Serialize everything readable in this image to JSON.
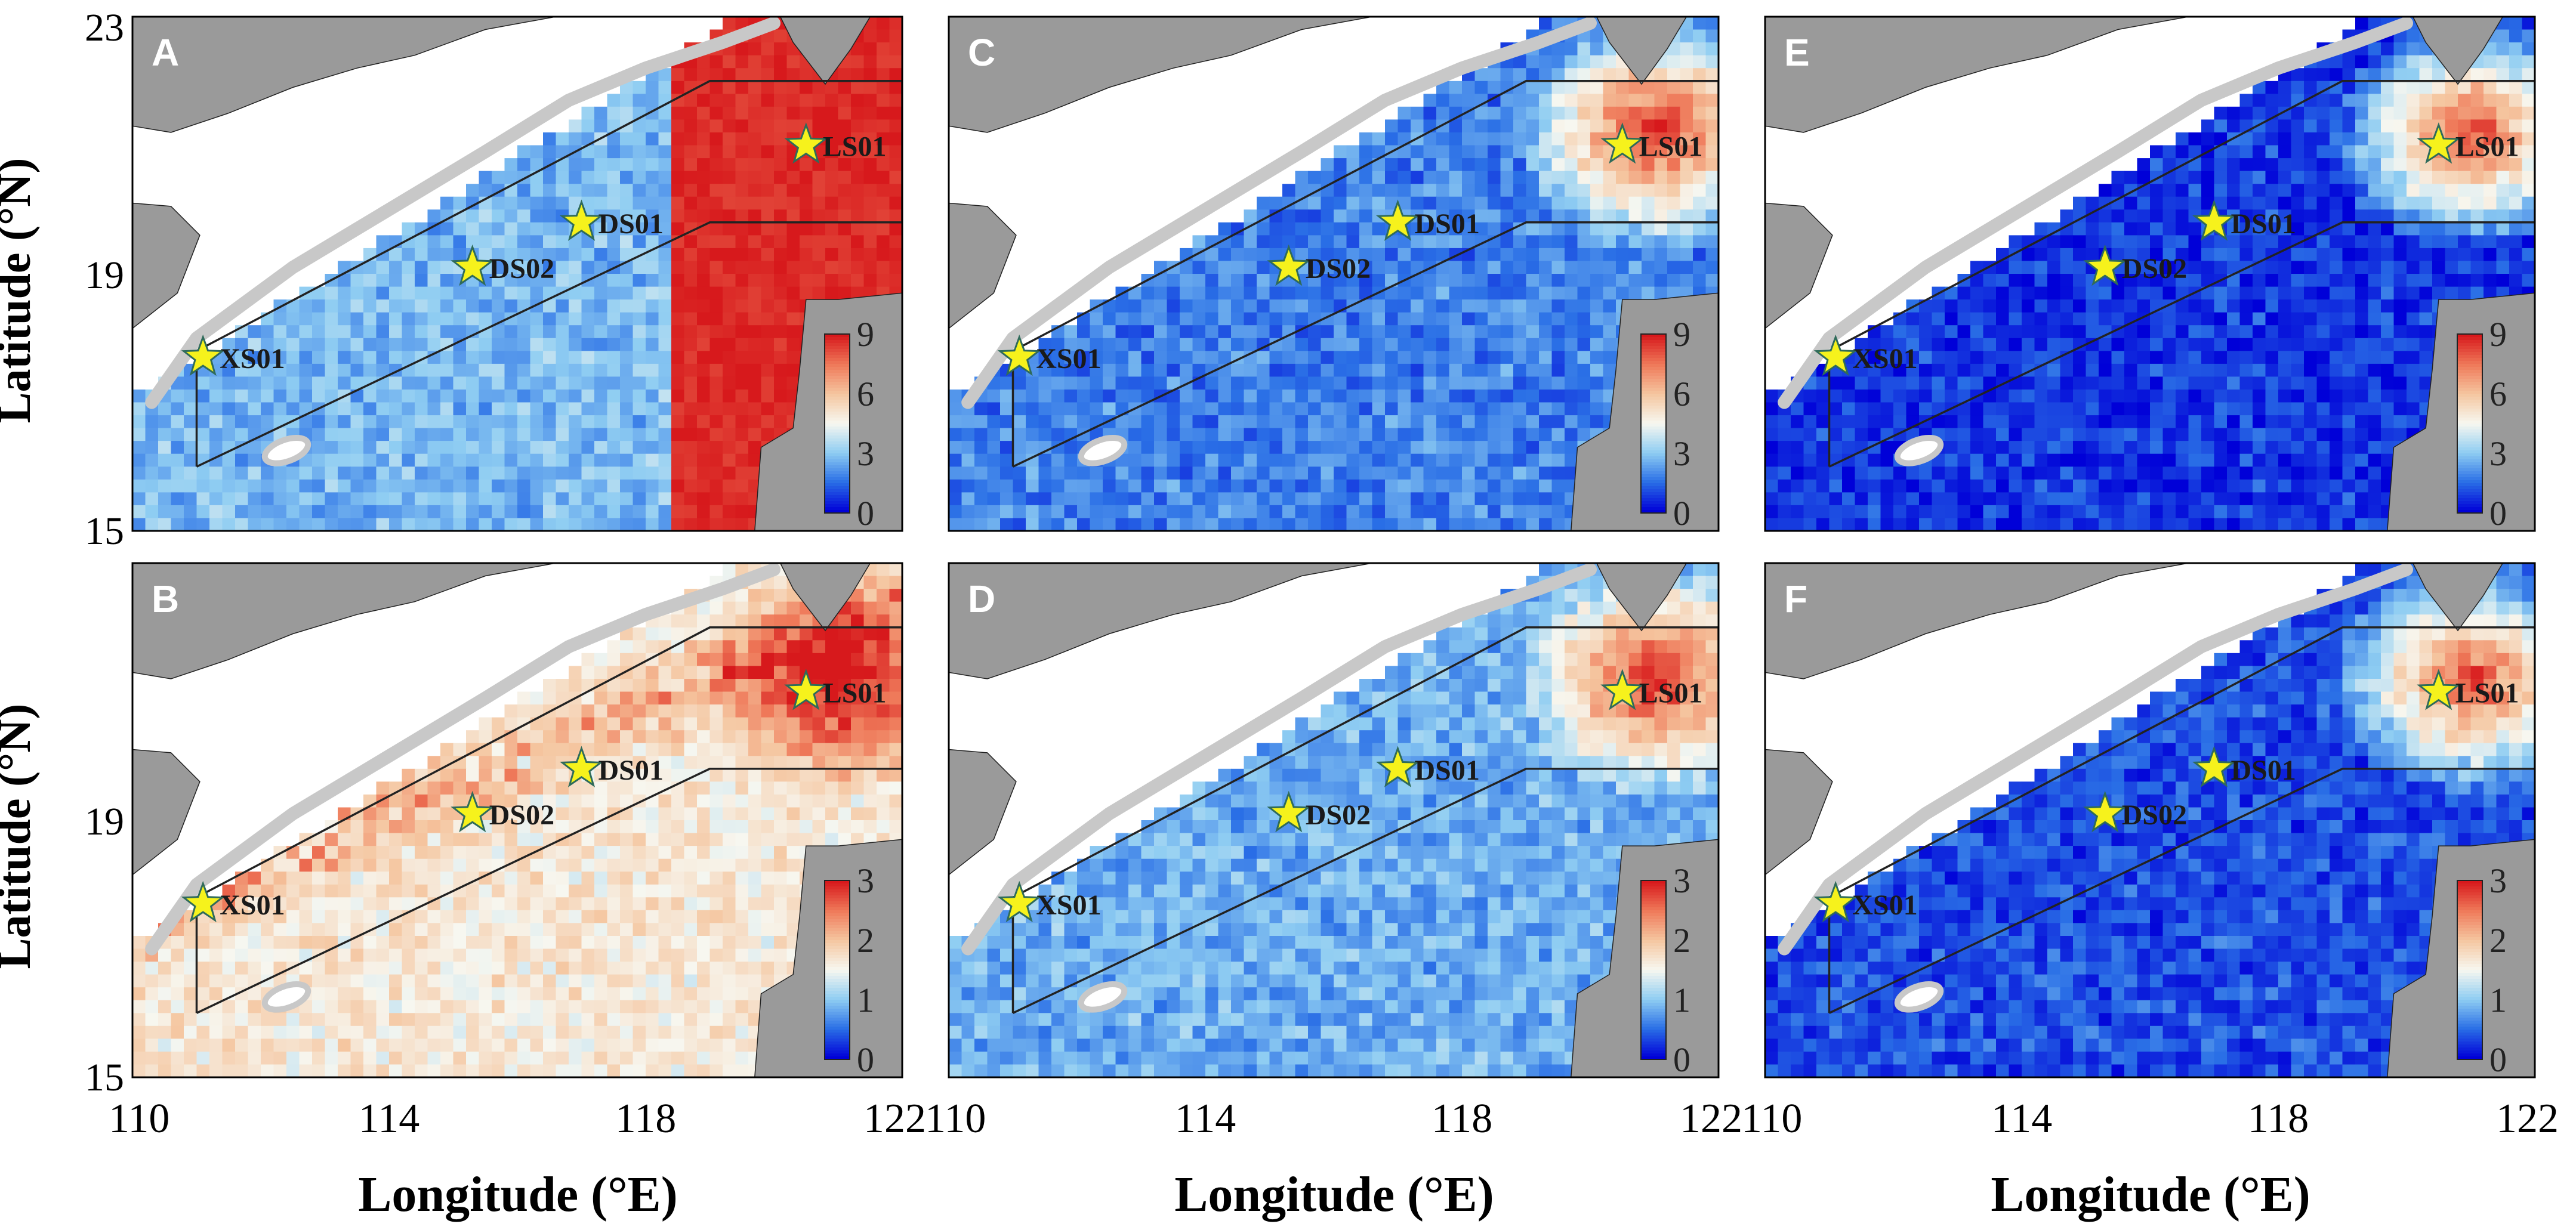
{
  "figure": {
    "x_axis_title": "Longitude (°E)",
    "y_axis_title": "Latitude (°N)"
  },
  "chart_data": {
    "type": "heatmap",
    "description_scope": "six map panels of the northern South China Sea with station markers",
    "xlabel": "Longitude (°E)",
    "ylabel": "Latitude (°N)",
    "xlim": [
      110,
      122
    ],
    "ylim": [
      15,
      23
    ],
    "x_ticks": [
      {
        "value": 110,
        "label": "110"
      },
      {
        "value": 114,
        "label": "114"
      },
      {
        "value": 118,
        "label": "118"
      },
      {
        "value": 122,
        "label": "122"
      }
    ],
    "y_ticks": [
      {
        "value": 15,
        "label": "15"
      },
      {
        "value": 19,
        "label": "19"
      },
      {
        "value": 23,
        "label": "23"
      }
    ],
    "stations": [
      {
        "name": "LS01",
        "lon": 120.5,
        "lat": 21.0
      },
      {
        "name": "DS01",
        "lon": 117.0,
        "lat": 19.8
      },
      {
        "name": "DS02",
        "lon": 115.3,
        "lat": 19.1
      },
      {
        "name": "XS01",
        "lon": 111.1,
        "lat": 17.7
      }
    ],
    "study_region_polygon": [
      [
        111.0,
        16.0
      ],
      [
        111.0,
        17.8
      ],
      [
        119.0,
        22.0
      ],
      [
        122.0,
        22.0
      ],
      [
        122.0,
        19.8
      ],
      [
        119.0,
        19.8
      ],
      [
        111.0,
        16.0
      ]
    ],
    "colormap": [
      "#0000d8",
      "#2a6fe6",
      "#8fcdf2",
      "#f7f7f0",
      "#f5c6a0",
      "#ef7a5a",
      "#d7191c"
    ],
    "land_color": "#9a9a9a",
    "shelf_contour_color": "#c8c8c8",
    "panels": [
      {
        "letter": "A",
        "row": 0,
        "col": 0,
        "colorbar": {
          "max": 9,
          "ticks": [
            "9",
            "6",
            "3",
            "0"
          ]
        },
        "hot_level": 1.0,
        "base_level": 0.3
      },
      {
        "letter": "C",
        "row": 0,
        "col": 1,
        "colorbar": {
          "max": 9,
          "ticks": [
            "9",
            "6",
            "3",
            "0"
          ]
        },
        "hot_level": 0.9,
        "base_level": 0.2
      },
      {
        "letter": "E",
        "row": 0,
        "col": 2,
        "colorbar": {
          "max": 9,
          "ticks": [
            "9",
            "6",
            "3",
            "0"
          ]
        },
        "hot_level": 0.85,
        "base_level": 0.08
      },
      {
        "letter": "B",
        "row": 1,
        "col": 0,
        "colorbar": {
          "max": 3,
          "ticks": [
            "3",
            "2",
            "1",
            "0"
          ]
        },
        "hot_level": 1.0,
        "base_level": 0.55
      },
      {
        "letter": "D",
        "row": 1,
        "col": 1,
        "colorbar": {
          "max": 3,
          "ticks": [
            "3",
            "2",
            "1",
            "0"
          ]
        },
        "hot_level": 0.9,
        "base_level": 0.28
      },
      {
        "letter": "F",
        "row": 1,
        "col": 2,
        "colorbar": {
          "max": 3,
          "ticks": [
            "3",
            "2",
            "1",
            "0"
          ]
        },
        "hot_level": 0.85,
        "base_level": 0.12
      }
    ]
  }
}
